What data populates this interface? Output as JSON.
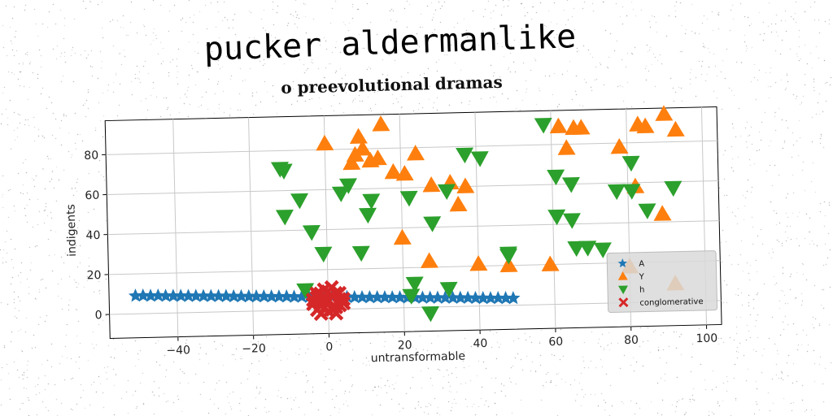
{
  "title": "pucker aldermanlike",
  "subtitle": "o preevolutional dramas",
  "chart_data": {
    "type": "scatter",
    "xlabel": "untransformable",
    "ylabel": "indigents",
    "xlim": [
      -58,
      104
    ],
    "ylim": [
      -12,
      97
    ],
    "xticks": [
      -40,
      -20,
      0,
      20,
      40,
      60,
      80,
      100
    ],
    "yticks": [
      0,
      20,
      40,
      60,
      80
    ],
    "grid": true,
    "legend_position": "lower-right",
    "series": [
      {
        "name": "A",
        "marker": "star",
        "color": "#1f77b4",
        "x": [
          -51,
          -49,
          -47,
          -45,
          -43,
          -41,
          -39,
          -37,
          -35,
          -33,
          -31,
          -29,
          -27,
          -25,
          -23,
          -21,
          -19,
          -17,
          -15,
          -13,
          -11,
          -9,
          -7,
          -5,
          -3,
          -1,
          1,
          3,
          5,
          7,
          9,
          11,
          13,
          15,
          17,
          19,
          21,
          23,
          25,
          27,
          29,
          31,
          33,
          35,
          37,
          39,
          41,
          43,
          45,
          47,
          49
        ],
        "y": [
          9,
          9,
          8.8,
          8.8,
          8.6,
          8.5,
          8.4,
          8.3,
          8.2,
          8.1,
          8,
          7.9,
          7.8,
          7.6,
          7.5,
          7.4,
          7.3,
          7.2,
          7.1,
          7,
          6.9,
          6.7,
          6.6,
          6.5,
          6.4,
          6.3,
          6.2,
          6.1,
          6,
          5.8,
          5.7,
          5.6,
          5.5,
          5.4,
          5.3,
          5.2,
          5,
          4.9,
          4.8,
          4.7,
          4.6,
          4.5,
          4.4,
          4.3,
          4.2,
          4,
          3.9,
          3.8,
          3.7,
          3.6,
          3.5
        ]
      },
      {
        "name": "Y",
        "marker": "triangle-up",
        "color": "#ff7f0e",
        "x": [
          0,
          9,
          15,
          8,
          10,
          12,
          14,
          7,
          24,
          18,
          21,
          28,
          33,
          37,
          35,
          20,
          27,
          40,
          48,
          62,
          66,
          68,
          64,
          59,
          80,
          78,
          82,
          85,
          89,
          93,
          83,
          90,
          92
        ],
        "y": [
          83,
          86,
          92,
          77,
          80,
          74,
          75,
          73,
          77,
          68,
          67,
          61,
          62,
          60,
          51,
          35,
          23,
          21,
          20,
          89,
          88,
          88,
          78,
          20,
          18,
          78,
          58,
          88,
          44,
          86,
          89,
          94,
          9
        ]
      },
      {
        "name": "h",
        "marker": "triangle-down",
        "color": "#2ca02c",
        "x": [
          -12,
          -11,
          -7,
          -11,
          -4,
          4,
          6,
          12,
          11,
          9,
          -1,
          22,
          23,
          28,
          32,
          37,
          41,
          48,
          58,
          61,
          65,
          61,
          65,
          66,
          69,
          73,
          77,
          81,
          81,
          85,
          92,
          -6,
          22,
          32,
          27,
          48
        ],
        "y": [
          71,
          70,
          55,
          47,
          39,
          58,
          62,
          54,
          47,
          28,
          28,
          55,
          12,
          42,
          58,
          76,
          74,
          25,
          90,
          64,
          60,
          44,
          42,
          28,
          28,
          27,
          56,
          70,
          56,
          46,
          57,
          10,
          6,
          9,
          -3,
          26
        ]
      },
      {
        "name": "conglomerative",
        "marker": "x",
        "color": "#d62728",
        "x": [
          -4,
          -3,
          -2,
          -1,
          0,
          1,
          2,
          3,
          4,
          -3,
          -1,
          1,
          3,
          -2,
          0,
          2,
          -4,
          4,
          -1,
          1,
          0,
          -3,
          3,
          -2,
          2
        ],
        "y": [
          3,
          6,
          2,
          5,
          4,
          7,
          1,
          5,
          3,
          0,
          1,
          0,
          2,
          8,
          9,
          8,
          5,
          5,
          10,
          11,
          -1,
          8,
          8,
          -2,
          -2
        ]
      }
    ]
  }
}
